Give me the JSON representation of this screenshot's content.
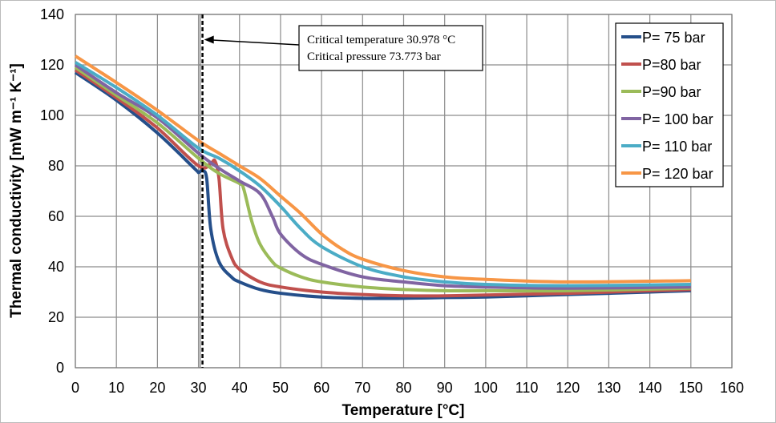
{
  "chart_data": {
    "type": "line",
    "title": "",
    "xlabel": "Temperature [°C]",
    "ylabel": "Thermal conductivity [mW m⁻¹ K⁻¹]",
    "xlim": [
      0,
      160
    ],
    "ylim": [
      0,
      140
    ],
    "xticks": [
      0,
      10,
      20,
      30,
      40,
      50,
      60,
      70,
      80,
      90,
      100,
      110,
      120,
      130,
      140,
      150,
      160
    ],
    "yticks": [
      0,
      20,
      40,
      60,
      80,
      100,
      120,
      140
    ],
    "grid": true,
    "legend_position": "top-right",
    "annotation": {
      "lines": [
        "Critical temperature 30.978 °C",
        "Critical pressure 73.773 bar"
      ],
      "critical_temperature": 30.978,
      "arrow_target": [
        31,
        130
      ]
    },
    "series": [
      {
        "name": "P= 75 bar",
        "color": "#254f8a",
        "x": [
          0,
          10,
          20,
          29,
          30,
          31,
          32,
          33,
          35,
          38,
          40,
          45,
          50,
          60,
          70,
          80,
          90,
          100,
          110,
          120,
          130,
          140,
          150
        ],
        "y": [
          117,
          106,
          93,
          79,
          77.5,
          78,
          75,
          55,
          42,
          36,
          34,
          31,
          29.5,
          28,
          27.5,
          27.5,
          27.8,
          28,
          28.5,
          29,
          29.5,
          30,
          30.5
        ]
      },
      {
        "name": "P=80 bar",
        "color": "#c0504d",
        "x": [
          0,
          10,
          20,
          30,
          33,
          34,
          35,
          36,
          38,
          40,
          45,
          50,
          60,
          70,
          80,
          90,
          100,
          120,
          150
        ],
        "y": [
          118,
          107,
          95,
          80,
          81,
          82,
          75,
          55,
          44,
          39,
          34,
          32,
          30,
          29,
          28.5,
          28.5,
          28.8,
          29.5,
          31
        ]
      },
      {
        "name": "P=90 bar",
        "color": "#9bbb59",
        "x": [
          0,
          10,
          20,
          30,
          35,
          40,
          41,
          43,
          45,
          48,
          50,
          55,
          60,
          70,
          80,
          90,
          100,
          120,
          150
        ],
        "y": [
          119,
          108,
          97,
          83,
          77,
          73,
          71,
          58,
          49,
          42,
          39.5,
          36,
          34,
          32,
          31,
          30.5,
          30.5,
          30.5,
          31.5
        ]
      },
      {
        "name": "P= 100 bar",
        "color": "#8064a2",
        "x": [
          0,
          10,
          20,
          30,
          35,
          40,
          45,
          48,
          50,
          55,
          60,
          70,
          80,
          90,
          100,
          120,
          150
        ],
        "y": [
          120,
          109,
          99,
          85,
          79,
          74,
          69,
          60,
          53,
          45,
          41,
          36,
          34,
          32.5,
          32,
          31.5,
          32
        ]
      },
      {
        "name": "P= 110 bar",
        "color": "#4bacc6",
        "x": [
          0,
          10,
          20,
          30,
          35,
          40,
          45,
          50,
          55,
          60,
          70,
          80,
          90,
          100,
          120,
          150
        ],
        "y": [
          121,
          111,
          100,
          87,
          83,
          78,
          72,
          64,
          55,
          48,
          40,
          36,
          34,
          33,
          32.5,
          33
        ]
      },
      {
        "name": "P= 120 bar",
        "color": "#f79646",
        "x": [
          0,
          10,
          20,
          30,
          35,
          40,
          45,
          50,
          55,
          60,
          65,
          70,
          80,
          90,
          100,
          120,
          150
        ],
        "y": [
          123.5,
          113,
          102,
          90,
          85,
          80,
          75,
          68,
          61,
          53,
          47,
          43,
          38.5,
          36,
          35,
          34,
          34.5
        ]
      }
    ]
  }
}
